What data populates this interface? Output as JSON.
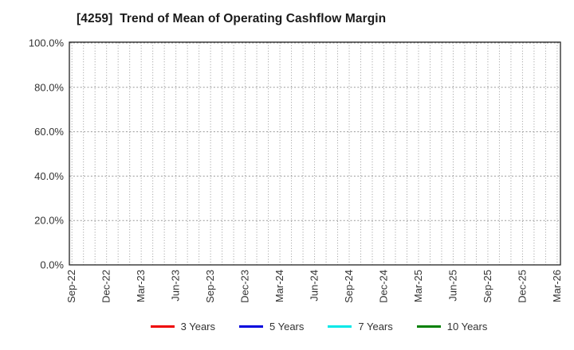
{
  "chart": {
    "title": "[4259]  Trend of Mean of Operating Cashflow Margin"
  },
  "chart_data": {
    "type": "line",
    "title": "[4259]  Trend of Mean of Operating Cashflow Margin",
    "xlabel": "",
    "ylabel": "",
    "x_tick_labels": [
      "Sep-22",
      "Dec-22",
      "Mar-23",
      "Jun-23",
      "Sep-23",
      "Dec-23",
      "Mar-24",
      "Jun-24",
      "Sep-24",
      "Dec-24",
      "Mar-25",
      "Jun-25",
      "Sep-25",
      "Dec-25",
      "Mar-26"
    ],
    "x_months_span": 42,
    "x_ticks_every_months": 3,
    "y_ticks": [
      0,
      20,
      40,
      60,
      80,
      100
    ],
    "y_tick_labels": [
      "0.0%",
      "20.0%",
      "40.0%",
      "60.0%",
      "80.0%",
      "100.0%"
    ],
    "ylim": [
      0,
      100
    ],
    "grid": {
      "visible": true,
      "style": "dotted",
      "vertical": "monthly",
      "horizontal": "every 20%"
    },
    "legend_position": "bottom",
    "series": [
      {
        "name": "3 Years",
        "color": "#ee0000",
        "values": []
      },
      {
        "name": "5 Years",
        "color": "#0000dd",
        "values": []
      },
      {
        "name": "7 Years",
        "color": "#00e8e8",
        "values": []
      },
      {
        "name": "10 Years",
        "color": "#008000",
        "values": []
      }
    ],
    "note": "plot area is empty - no data points are drawn for any series"
  },
  "style": {
    "axis_color": "#222222",
    "grid_color": "#999999",
    "tick_label_color": "#333333"
  }
}
